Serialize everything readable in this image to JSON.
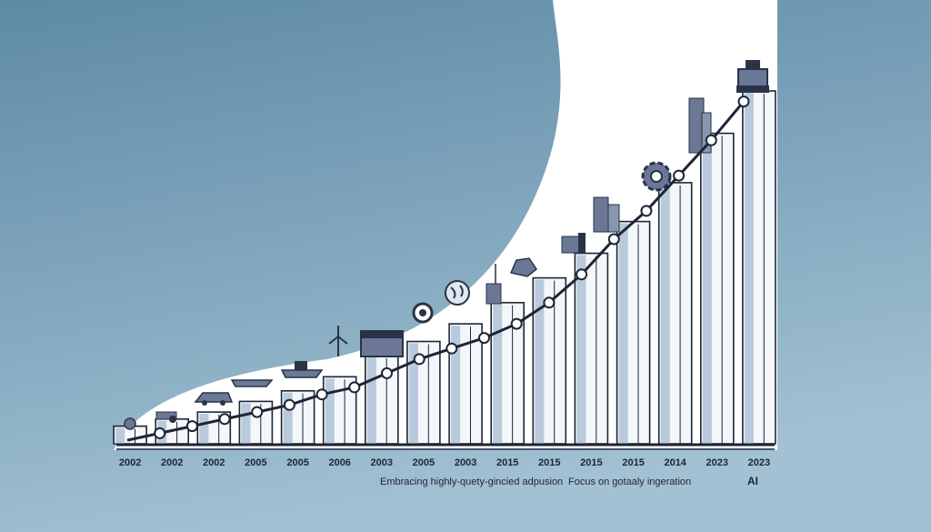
{
  "chart_data": {
    "type": "bar",
    "title": "",
    "xlabel": "",
    "ylabel": "",
    "categories": [
      "2002",
      "2002",
      "2002",
      "2005",
      "2005",
      "2006",
      "2003",
      "2005",
      "2003",
      "2015",
      "2015",
      "2015",
      "2015",
      "2014",
      "2023",
      "2023"
    ],
    "values": [
      5,
      7,
      9,
      12,
      15,
      19,
      25,
      29,
      34,
      40,
      47,
      54,
      63,
      74,
      88,
      100
    ],
    "line_values": [
      1,
      3,
      5,
      7,
      9,
      11,
      14,
      16,
      20,
      24,
      27,
      30,
      34,
      40,
      48,
      58,
      66,
      76,
      86,
      97
    ],
    "ylim": [
      0,
      100
    ],
    "grid": false,
    "annotations": [
      {
        "text": "Embracing highly-quety-gincied adpusion"
      },
      {
        "text": "Focus on gotaaly ingeration"
      },
      {
        "text": "AI"
      }
    ],
    "colors": {
      "background_top": "#5e8aa6",
      "background_bottom": "#9fbfd1",
      "panel": "#ffffff",
      "bar": "#f4f7f9",
      "bar_shade": "#b9cadc",
      "line": "#1e2536",
      "icon_dark": "#2a3346",
      "icon_mid": "#6a7896"
    },
    "icons": [
      "ground-robot-icon",
      "tractor-icon",
      "car-icon",
      "boat-icon",
      "ship-icon",
      "windmill-icon",
      "server-icon",
      "gear-eye-icon",
      "globe-icon",
      "antenna-tower-icon",
      "circuit-icon",
      "factory-icon",
      "office-buildings-icon",
      "gear-icon",
      "skyscraper-icon",
      "robot-head-icon"
    ]
  }
}
